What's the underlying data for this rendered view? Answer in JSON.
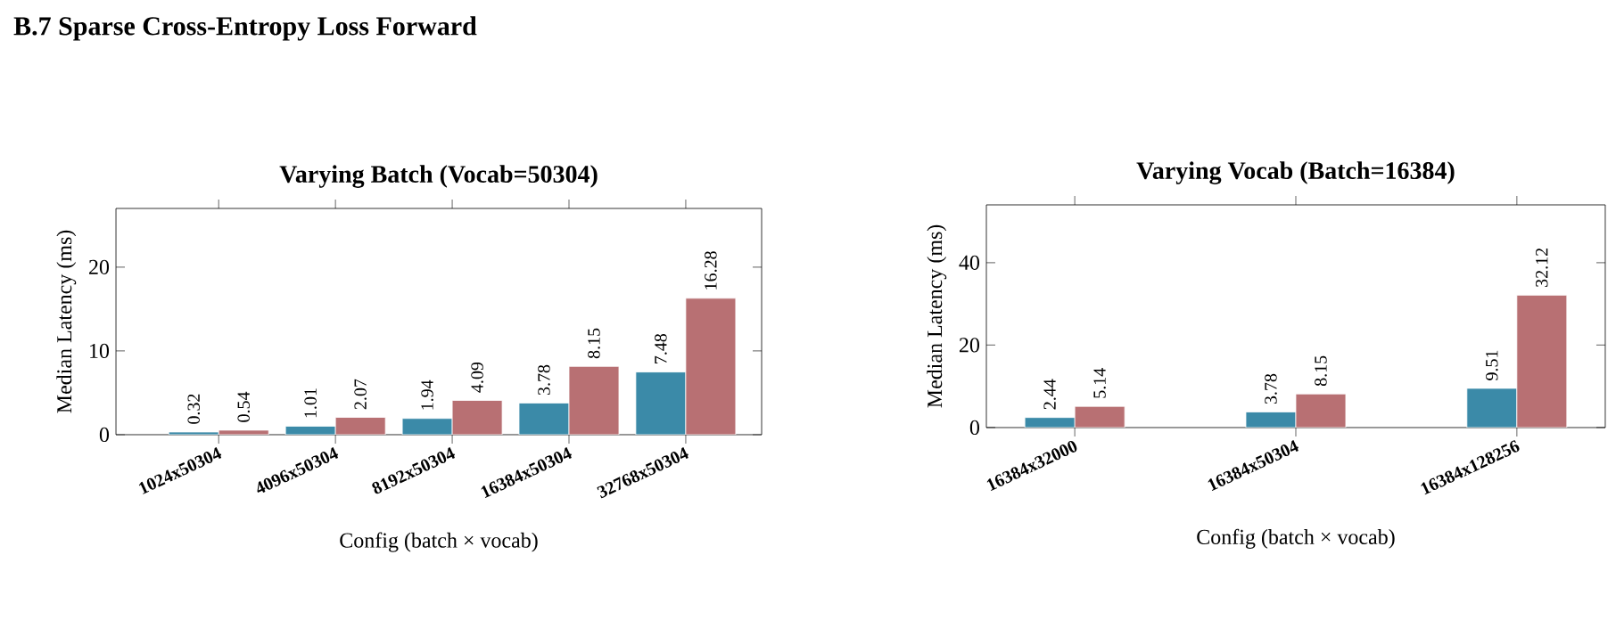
{
  "chart_data": [
    {
      "type": "bar",
      "title": "Varying Batch (Vocab=50304)",
      "annotations": [
        "B.7 Sparse Cross-Entropy Loss Forward"
      ],
      "xlabel": "Config (batch × vocab)",
      "ylabel": "Median Latency (ms)",
      "categories": [
        "1024x50304",
        "4096x50304",
        "8192x50304",
        "16384x50304",
        "32768x50304"
      ],
      "series": [
        {
          "color": "#3b8aa8",
          "values": [
            0.32,
            1.01,
            1.94,
            3.78,
            7.48
          ]
        },
        {
          "color": "#b87073",
          "values": [
            0.54,
            2.07,
            4.09,
            8.15,
            16.28
          ]
        }
      ],
      "ylim": [
        0,
        27
      ],
      "yticks": [
        0,
        10,
        20
      ],
      "data_labels": true
    },
    {
      "type": "bar",
      "title": "Varying Vocab (Batch=16384)",
      "xlabel": "Config (batch × vocab)",
      "ylabel": "Median Latency (ms)",
      "categories": [
        "16384x32000",
        "16384x50304",
        "16384x128256"
      ],
      "series": [
        {
          "color": "#3b8aa8",
          "values": [
            2.44,
            3.78,
            9.51
          ]
        },
        {
          "color": "#b87073",
          "values": [
            5.14,
            8.15,
            32.12
          ]
        }
      ],
      "ylim": [
        0,
        54
      ],
      "yticks": [
        0,
        20,
        40
      ],
      "data_labels": true
    }
  ]
}
